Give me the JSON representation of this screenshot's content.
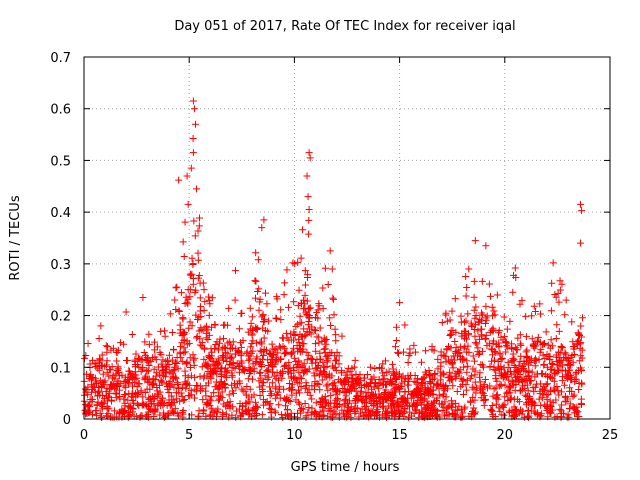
{
  "chart_data": {
    "type": "scatter",
    "title": "Day 051 of 2017, Rate Of TEC Index for receiver iqal",
    "xlabel": "GPS time / hours",
    "ylabel": "ROTI / TECUs",
    "xlim": [
      0,
      25
    ],
    "ylim": [
      0,
      0.7
    ],
    "x_ticks": [
      "0",
      "5",
      "10",
      "15",
      "20",
      "25"
    ],
    "y_ticks": [
      "0",
      "0.1",
      "0.2",
      "0.3",
      "0.4",
      "0.5",
      "0.6",
      "0.7"
    ],
    "grid": true,
    "marker": "plus",
    "color": "#ff0000",
    "series": [
      {
        "name": "ROTI",
        "envelope": {
          "x": [
            0,
            0.5,
            1,
            1.5,
            2,
            2.5,
            3,
            3.5,
            4,
            4.5,
            5,
            5.3,
            5.6,
            6,
            6.5,
            7,
            7.5,
            8,
            8.5,
            9,
            9.5,
            10,
            10.5,
            10.7,
            11,
            11.5,
            12,
            12.5,
            13,
            13.5,
            14,
            14.5,
            15,
            15.5,
            16,
            16.5,
            17,
            17.5,
            18,
            18.5,
            19,
            19.5,
            20,
            20.5,
            21,
            21.5,
            22,
            22.5,
            23,
            23.5,
            23.7
          ],
          "high": [
            0.14,
            0.16,
            0.18,
            0.15,
            0.2,
            0.18,
            0.23,
            0.2,
            0.22,
            0.3,
            0.48,
            0.61,
            0.3,
            0.25,
            0.2,
            0.26,
            0.23,
            0.3,
            0.38,
            0.22,
            0.3,
            0.35,
            0.5,
            0.4,
            0.3,
            0.32,
            0.2,
            0.15,
            0.14,
            0.12,
            0.1,
            0.12,
            0.22,
            0.16,
            0.12,
            0.15,
            0.2,
            0.24,
            0.26,
            0.34,
            0.33,
            0.25,
            0.22,
            0.29,
            0.2,
            0.25,
            0.25,
            0.3,
            0.25,
            0.41,
            0.4
          ],
          "typical": [
            0.05,
            0.06,
            0.06,
            0.05,
            0.06,
            0.06,
            0.07,
            0.06,
            0.06,
            0.09,
            0.15,
            0.2,
            0.12,
            0.08,
            0.07,
            0.08,
            0.08,
            0.09,
            0.11,
            0.07,
            0.08,
            0.09,
            0.14,
            0.12,
            0.09,
            0.08,
            0.06,
            0.05,
            0.05,
            0.04,
            0.04,
            0.04,
            0.05,
            0.05,
            0.04,
            0.05,
            0.06,
            0.08,
            0.09,
            0.11,
            0.11,
            0.09,
            0.08,
            0.08,
            0.07,
            0.08,
            0.08,
            0.09,
            0.07,
            0.09,
            0.08
          ]
        },
        "notable_points": [
          {
            "x": 5.2,
            "y": 0.615
          },
          {
            "x": 5.25,
            "y": 0.6
          },
          {
            "x": 5.3,
            "y": 0.57
          },
          {
            "x": 5.2,
            "y": 0.515
          },
          {
            "x": 5.1,
            "y": 0.485
          },
          {
            "x": 4.9,
            "y": 0.47
          },
          {
            "x": 4.5,
            "y": 0.462
          },
          {
            "x": 5.35,
            "y": 0.445
          },
          {
            "x": 4.95,
            "y": 0.415
          },
          {
            "x": 10.7,
            "y": 0.515
          },
          {
            "x": 10.75,
            "y": 0.505
          },
          {
            "x": 10.6,
            "y": 0.47
          },
          {
            "x": 10.65,
            "y": 0.43
          },
          {
            "x": 10.7,
            "y": 0.405
          },
          {
            "x": 8.55,
            "y": 0.385
          },
          {
            "x": 8.45,
            "y": 0.37
          },
          {
            "x": 23.6,
            "y": 0.415
          },
          {
            "x": 23.65,
            "y": 0.403
          },
          {
            "x": 23.6,
            "y": 0.34
          },
          {
            "x": 18.6,
            "y": 0.345
          },
          {
            "x": 19.1,
            "y": 0.335
          },
          {
            "x": 11.7,
            "y": 0.325
          },
          {
            "x": 11.8,
            "y": 0.29
          },
          {
            "x": 20.5,
            "y": 0.292
          },
          {
            "x": 22.3,
            "y": 0.302
          },
          {
            "x": 7.2,
            "y": 0.287
          },
          {
            "x": 15.0,
            "y": 0.225
          },
          {
            "x": 2.0,
            "y": 0.207
          },
          {
            "x": 2.8,
            "y": 0.235
          },
          {
            "x": 0.8,
            "y": 0.18
          }
        ]
      }
    ]
  }
}
